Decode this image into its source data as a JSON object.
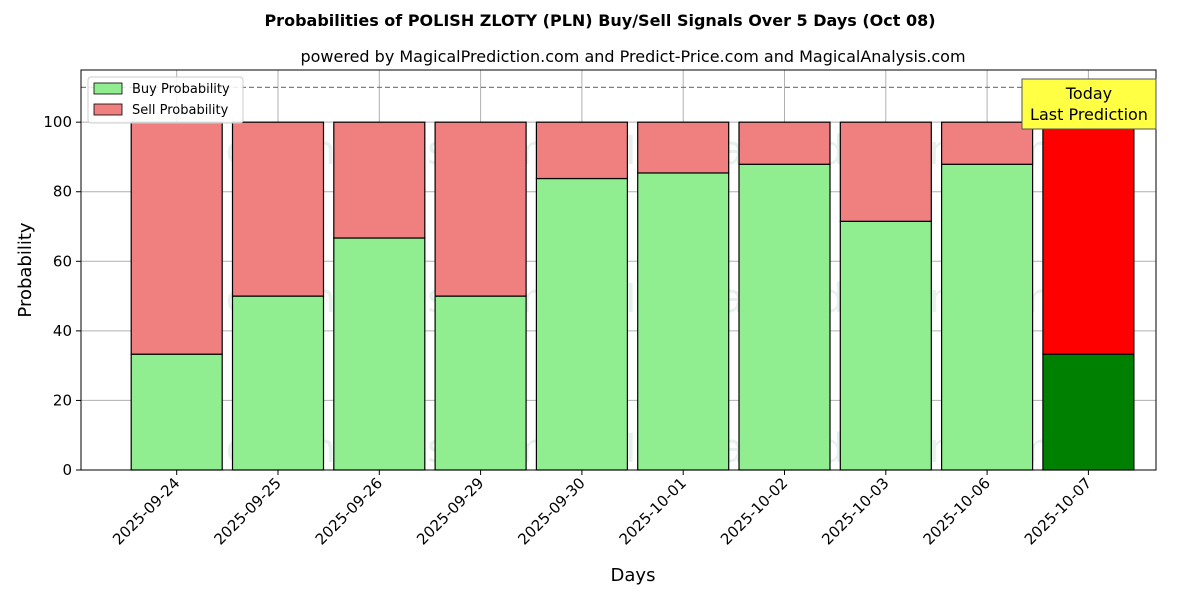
{
  "chart_data": {
    "type": "bar",
    "stacked": true,
    "title": "Probabilities of POLISH ZLOTY (PLN) Buy/Sell Signals Over 5 Days (Oct 08)",
    "subtitle": "powered by MagicalPrediction.com and Predict-Price.com and MagicalAnalysis.com",
    "xlabel": "Days",
    "ylabel": "Probability",
    "ylim": [
      0,
      115
    ],
    "yticks": [
      0,
      20,
      40,
      60,
      80,
      100
    ],
    "grid": true,
    "legend_position": "top-left",
    "reference_line": 110,
    "categories": [
      "2025-09-24",
      "2025-09-25",
      "2025-09-26",
      "2025-09-29",
      "2025-09-30",
      "2025-10-01",
      "2025-10-02",
      "2025-10-03",
      "2025-10-06",
      "2025-10-07"
    ],
    "series": [
      {
        "name": "Buy Probability",
        "values": [
          33.3,
          50.0,
          66.7,
          50.0,
          83.8,
          85.4,
          87.9,
          71.5,
          87.9,
          33.3
        ],
        "color": "#90ee90"
      },
      {
        "name": "Sell Probability",
        "values": [
          66.7,
          50.0,
          33.3,
          50.0,
          16.2,
          14.6,
          12.1,
          28.5,
          12.1,
          66.7
        ],
        "color": "#f08080"
      }
    ],
    "highlight": {
      "index": 9,
      "buy_color": "#008000",
      "sell_color": "#ff0000"
    },
    "annotation": {
      "lines": [
        "Today",
        "Last Prediction"
      ],
      "color": "#ffff44"
    },
    "watermarks": [
      "MagicalAnalysis.com",
      "MagicalPrediction.com"
    ]
  }
}
